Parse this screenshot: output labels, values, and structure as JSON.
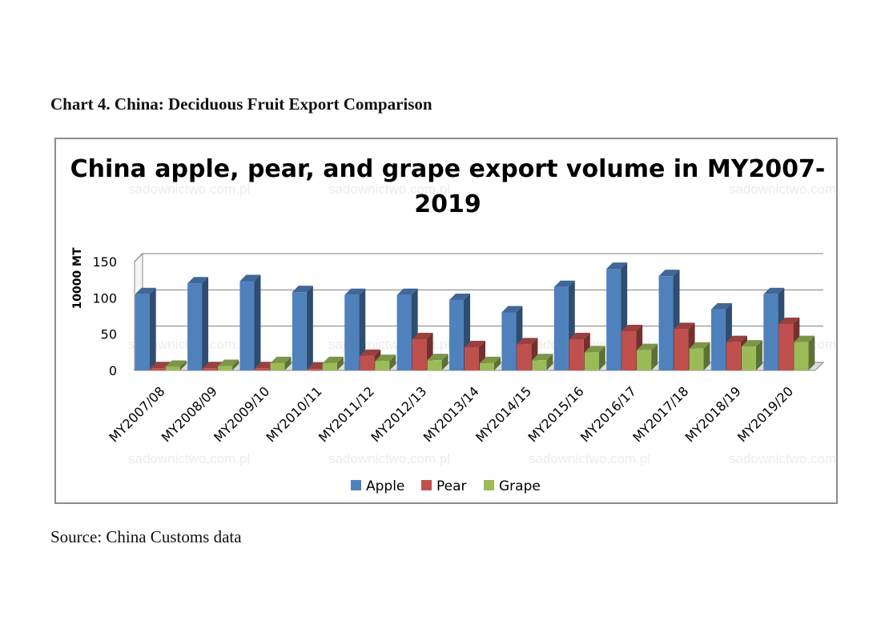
{
  "document": {
    "heading": "Chart 4. China: Deciduous Fruit Export Comparison",
    "source": "Source: China Customs data"
  },
  "watermark": "sadownictwo.com.pl",
  "chart_data": {
    "type": "bar",
    "subtype": "3d-clustered-column",
    "title": "China apple, pear, and grape export volume in MY2007-2019",
    "title_lines": [
      "China apple, pear, and grape export volume in MY2007-",
      "2019"
    ],
    "xlabel": "",
    "ylabel": "10000 MT",
    "ylim": [
      0,
      150
    ],
    "yticks": [
      0,
      50,
      100,
      150
    ],
    "grid": true,
    "legend_position": "bottom",
    "categories": [
      "MY2007/08",
      "MY2008/09",
      "MY2009/10",
      "MY2010/11",
      "MY2011/12",
      "MY2012/13",
      "MY2013/14",
      "MY2014/15",
      "MY2015/16",
      "MY2016/17",
      "MY2017/18",
      "MY2018/19",
      "MY2019/20"
    ],
    "series": [
      {
        "name": "Apple",
        "color": "#4f81bd",
        "values": [
          105,
          120,
          123,
          108,
          104,
          104,
          97,
          80,
          115,
          140,
          130,
          84,
          105
        ]
      },
      {
        "name": "Pear",
        "color": "#c0504d",
        "values": [
          3,
          3,
          3,
          2,
          20,
          43,
          32,
          36,
          43,
          54,
          57,
          39,
          64
        ]
      },
      {
        "name": "Grape",
        "color": "#9bbb59",
        "values": [
          5,
          6,
          10,
          10,
          13,
          14,
          10,
          14,
          25,
          28,
          30,
          33,
          39
        ]
      }
    ]
  }
}
